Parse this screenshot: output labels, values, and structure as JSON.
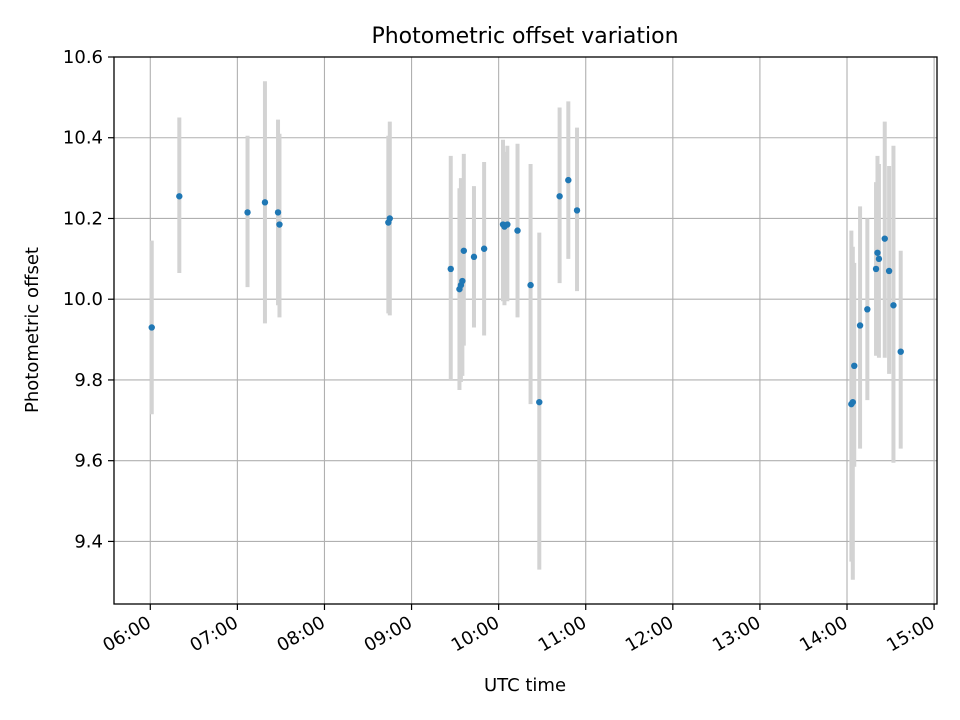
{
  "chart_data": {
    "type": "scatter",
    "title": "Photometric offset variation",
    "xlabel": "UTC time",
    "ylabel": "Photometric offset",
    "xlim": [
      "05:35",
      "15:02"
    ],
    "ylim": [
      9.245,
      10.6
    ],
    "x_ticks": [
      "06:00",
      "07:00",
      "08:00",
      "09:00",
      "10:00",
      "11:00",
      "12:00",
      "13:00",
      "14:00",
      "15:00"
    ],
    "y_ticks": [
      9.4,
      9.6,
      9.8,
      10.0,
      10.2,
      10.4,
      10.6
    ],
    "y_tick_labels": [
      "9.4",
      "9.6",
      "9.8",
      "10.0",
      "10.2",
      "10.4",
      "10.6"
    ],
    "grid": true,
    "series": [
      {
        "marker_color": "#1f77b4",
        "errorbar_color": "#d3d3d3",
        "points": [
          {
            "x": "06:01",
            "y": 9.93,
            "low": 9.715,
            "high": 10.145
          },
          {
            "x": "06:20",
            "y": 10.255,
            "low": 10.065,
            "high": 10.45
          },
          {
            "x": "07:07",
            "y": 10.215,
            "low": 10.03,
            "high": 10.405
          },
          {
            "x": "07:19",
            "y": 10.24,
            "low": 9.94,
            "high": 10.54
          },
          {
            "x": "07:28",
            "y": 10.215,
            "low": 9.985,
            "high": 10.445
          },
          {
            "x": "07:29",
            "y": 10.185,
            "low": 9.955,
            "high": 10.41
          },
          {
            "x": "08:44",
            "y": 10.19,
            "low": 9.965,
            "high": 10.405
          },
          {
            "x": "08:45",
            "y": 10.2,
            "low": 9.96,
            "high": 10.44
          },
          {
            "x": "09:27",
            "y": 10.075,
            "low": 9.8,
            "high": 10.355
          },
          {
            "x": "09:33",
            "y": 10.025,
            "low": 9.775,
            "high": 10.275
          },
          {
            "x": "09:34",
            "y": 10.035,
            "low": 9.795,
            "high": 10.3
          },
          {
            "x": "09:35",
            "y": 10.045,
            "low": 9.81,
            "high": 10.285
          },
          {
            "x": "09:36",
            "y": 10.12,
            "low": 9.885,
            "high": 10.36
          },
          {
            "x": "09:43",
            "y": 10.105,
            "low": 9.93,
            "high": 10.28
          },
          {
            "x": "09:50",
            "y": 10.125,
            "low": 9.91,
            "high": 10.34
          },
          {
            "x": "10:03",
            "y": 10.185,
            "low": 9.995,
            "high": 10.395
          },
          {
            "x": "10:04",
            "y": 10.18,
            "low": 9.985,
            "high": 10.365
          },
          {
            "x": "10:06",
            "y": 10.185,
            "low": 9.995,
            "high": 10.38
          },
          {
            "x": "10:13",
            "y": 10.17,
            "low": 9.955,
            "high": 10.385
          },
          {
            "x": "10:22",
            "y": 10.035,
            "low": 9.74,
            "high": 10.335
          },
          {
            "x": "10:28",
            "y": 9.745,
            "low": 9.33,
            "high": 10.165
          },
          {
            "x": "10:42",
            "y": 10.255,
            "low": 10.04,
            "high": 10.475
          },
          {
            "x": "10:48",
            "y": 10.295,
            "low": 10.1,
            "high": 10.49
          },
          {
            "x": "10:54",
            "y": 10.22,
            "low": 10.02,
            "high": 10.425
          },
          {
            "x": "14:03",
            "y": 9.74,
            "low": 9.35,
            "high": 10.17
          },
          {
            "x": "14:04",
            "y": 9.745,
            "low": 9.305,
            "high": 10.13
          },
          {
            "x": "14:05",
            "y": 9.835,
            "low": 9.585,
            "high": 10.09
          },
          {
            "x": "14:09",
            "y": 9.935,
            "low": 9.63,
            "high": 10.23
          },
          {
            "x": "14:14",
            "y": 9.975,
            "low": 9.75,
            "high": 10.2
          },
          {
            "x": "14:20",
            "y": 10.075,
            "low": 9.86,
            "high": 10.29
          },
          {
            "x": "14:21",
            "y": 10.115,
            "low": 9.865,
            "high": 10.355
          },
          {
            "x": "14:22",
            "y": 10.1,
            "low": 9.855,
            "high": 10.335
          },
          {
            "x": "14:26",
            "y": 10.15,
            "low": 9.855,
            "high": 10.44
          },
          {
            "x": "14:29",
            "y": 10.07,
            "low": 9.815,
            "high": 10.33
          },
          {
            "x": "14:32",
            "y": 9.985,
            "low": 9.595,
            "high": 10.38
          },
          {
            "x": "14:37",
            "y": 9.87,
            "low": 9.63,
            "high": 10.12
          }
        ]
      }
    ]
  }
}
